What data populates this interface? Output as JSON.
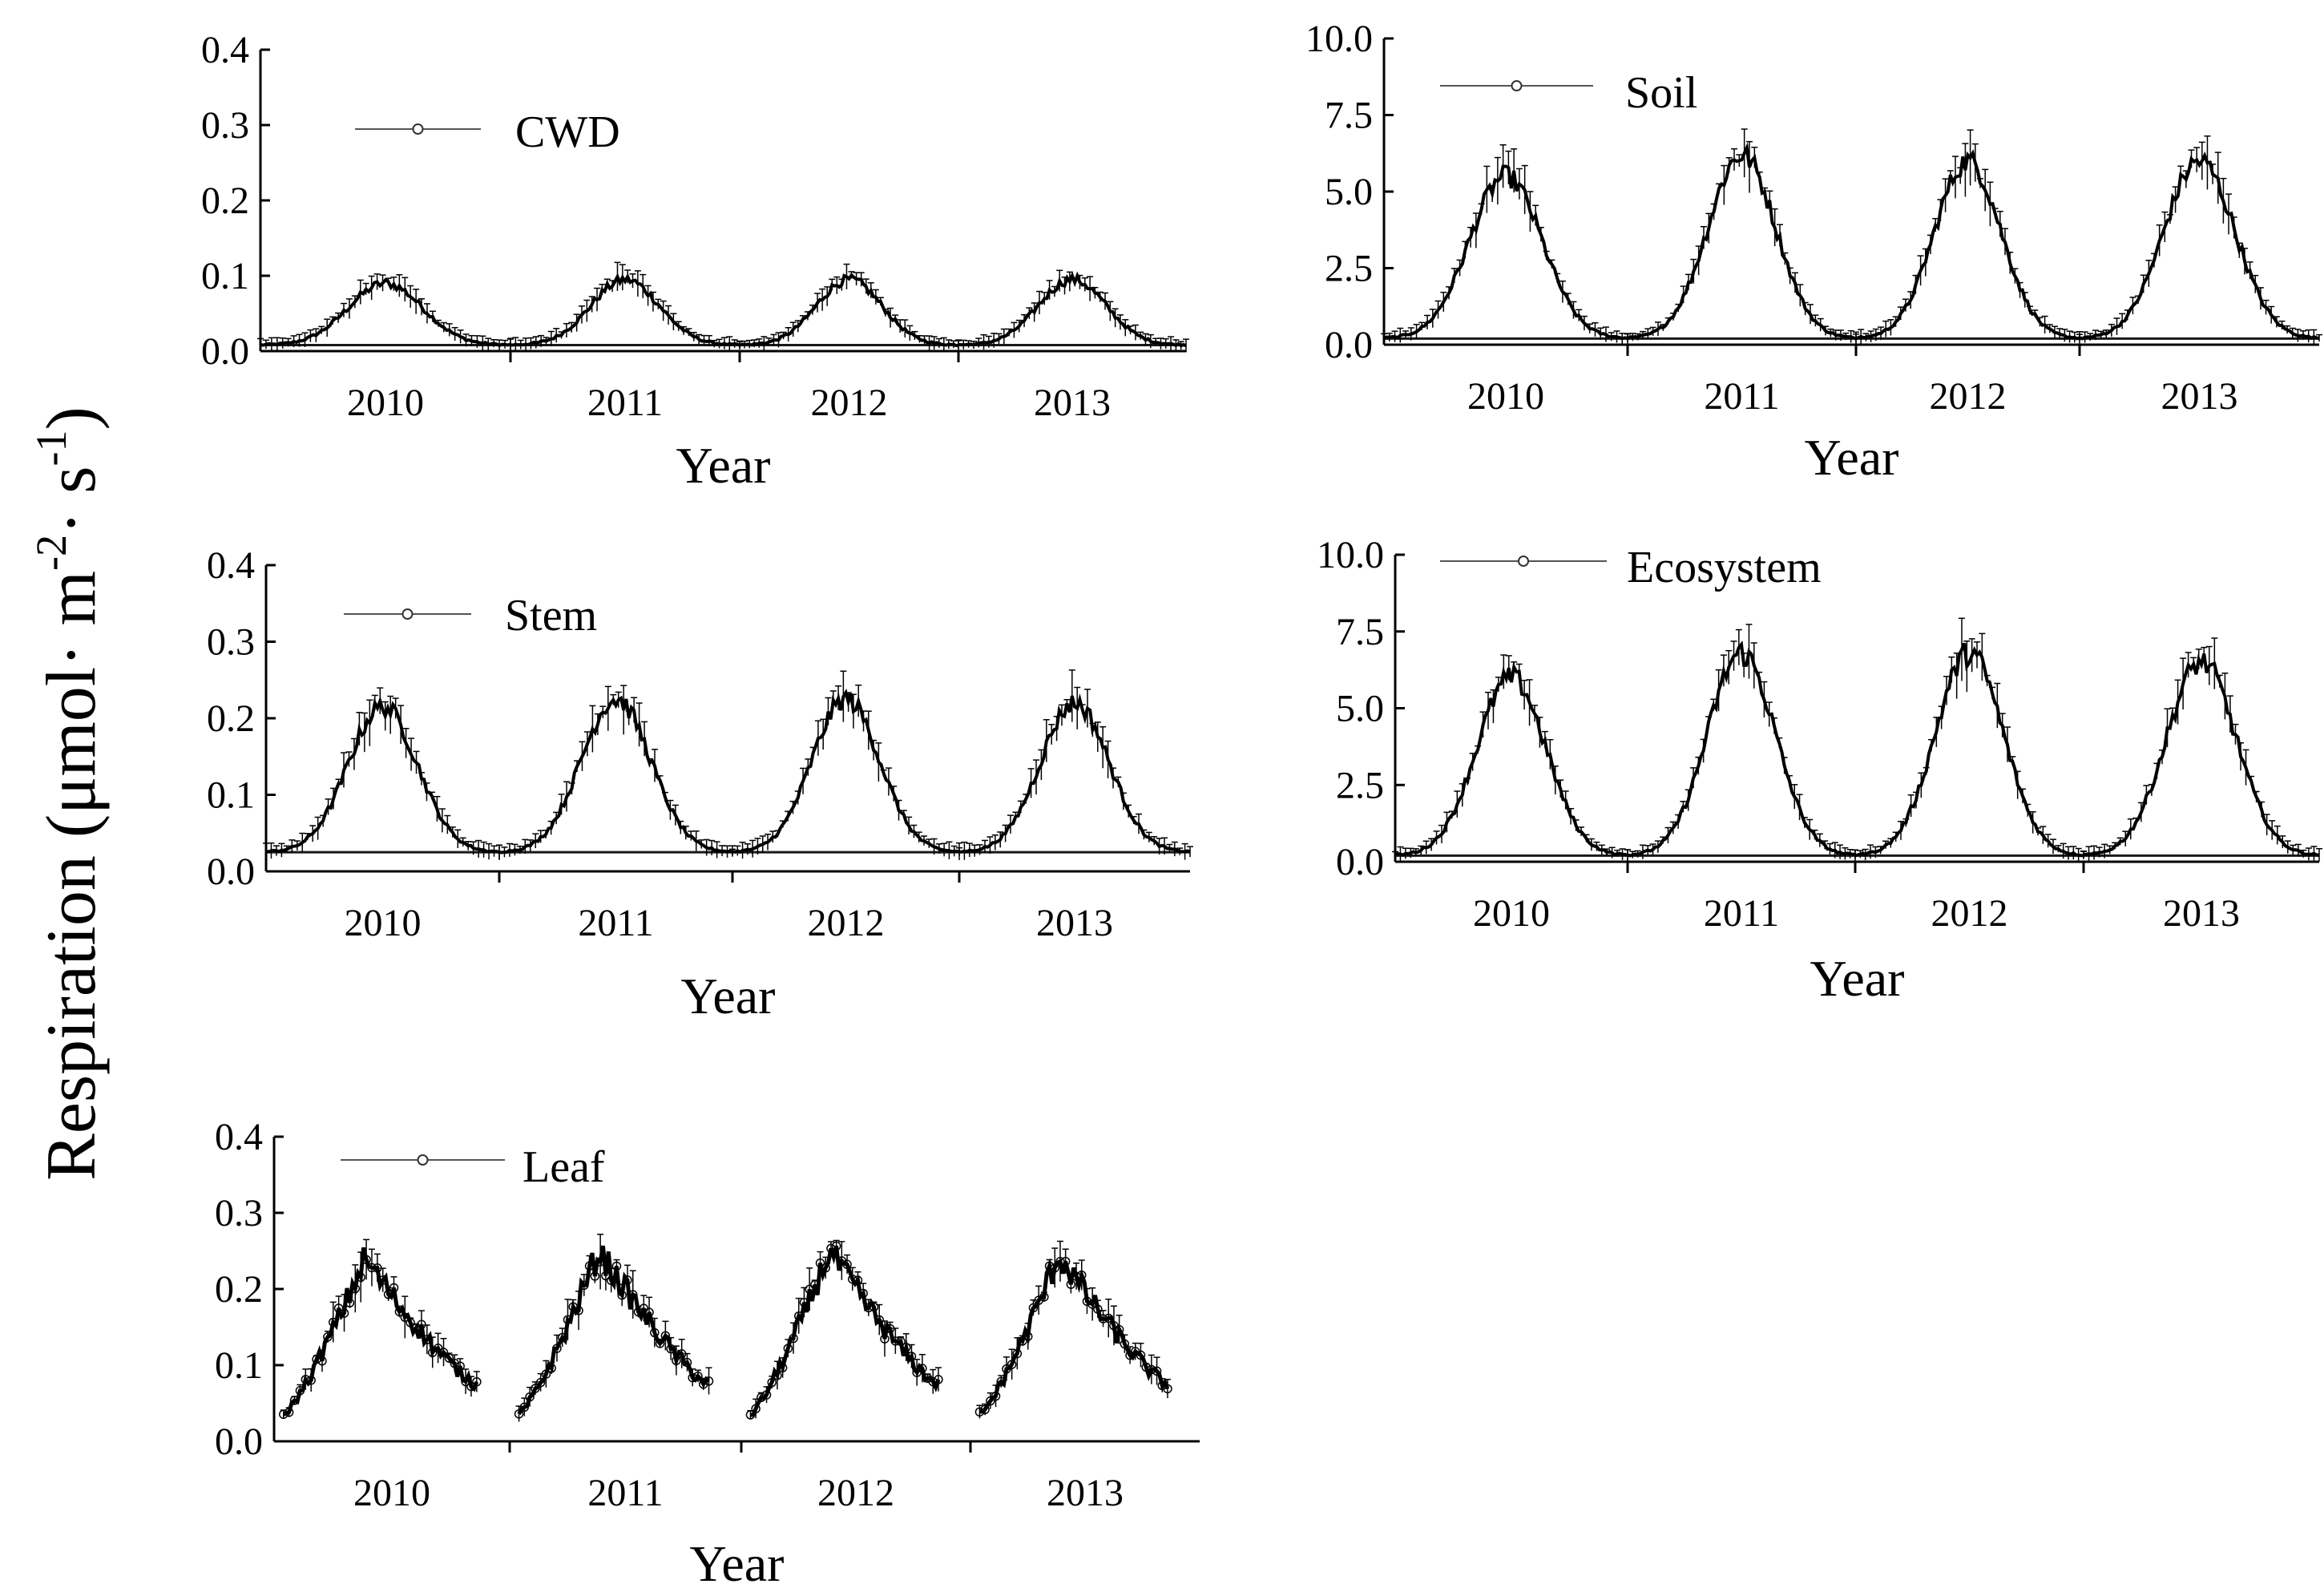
{
  "figure": {
    "ylabel": "Respiration (μmol· m",
    "ylabel_sup1": "-2",
    "ylabel_mid": "· s",
    "ylabel_sup2": "-1",
    "ylabel_close": ")"
  },
  "chart_data": [
    {
      "id": "cwd",
      "type": "line",
      "series": [
        {
          "name": "CWD",
          "peaks": [
            0.09,
            0.095,
            0.095,
            0.095
          ],
          "trough": 0.008
        }
      ],
      "categories": [
        "2010",
        "2011",
        "2012",
        "2013"
      ],
      "xlabel": "Year",
      "ylabel": "",
      "ylim": [
        0,
        0.4
      ],
      "yticks": [
        "0.0",
        "0.1",
        "0.2",
        "0.3",
        "0.4"
      ],
      "legend": "top-left"
    },
    {
      "id": "soil",
      "type": "line",
      "series": [
        {
          "name": "Soil",
          "peaks": [
            5.5,
            6.2,
            6.0,
            6.0
          ],
          "trough": 0.2
        }
      ],
      "categories": [
        "2010",
        "2011",
        "2012",
        "2013"
      ],
      "xlabel": "Year",
      "ylabel": "",
      "ylim": [
        0,
        10
      ],
      "yticks": [
        "0.0",
        "2.5",
        "5.0",
        "7.5",
        "10.0"
      ],
      "legend": "top"
    },
    {
      "id": "stem",
      "type": "line",
      "series": [
        {
          "name": "Stem",
          "peaks": [
            0.215,
            0.225,
            0.225,
            0.22
          ],
          "trough": 0.025
        }
      ],
      "categories": [
        "2010",
        "2011",
        "2012",
        "2013"
      ],
      "xlabel": "Year",
      "ylabel": "",
      "ylim": [
        0,
        0.4
      ],
      "yticks": [
        "0.0",
        "0.1",
        "0.2",
        "0.3",
        "0.4"
      ],
      "legend": "top-left"
    },
    {
      "id": "ecosystem",
      "type": "line",
      "series": [
        {
          "name": "Ecosystem",
          "peaks": [
            6.0,
            6.8,
            6.8,
            6.5
          ],
          "trough": 0.2
        }
      ],
      "categories": [
        "2010",
        "2011",
        "2012",
        "2013"
      ],
      "xlabel": "Year",
      "ylabel": "",
      "ylim": [
        0,
        10
      ],
      "yticks": [
        "0.0",
        "2.5",
        "5.0",
        "7.5",
        "10.0"
      ],
      "legend": "top"
    },
    {
      "id": "leaf",
      "type": "line",
      "series": [
        {
          "name": "Leaf",
          "peaks": [
            0.24,
            0.25,
            0.25,
            0.245
          ],
          "start": 0.035,
          "end": 0.075
        }
      ],
      "categories": [
        "2010",
        "2011",
        "2012",
        "2013"
      ],
      "xlabel": "Year",
      "ylabel": "",
      "ylim": [
        0,
        0.4
      ],
      "yticks": [
        "0.0",
        "0.1",
        "0.2",
        "0.3",
        "0.4"
      ],
      "legend": "top-left"
    }
  ]
}
